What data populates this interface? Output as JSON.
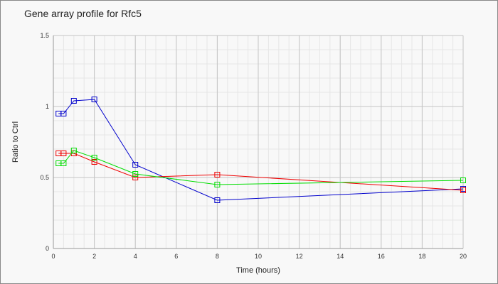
{
  "chart_data": {
    "type": "line",
    "title": "Gene array profile for Rfc5",
    "xlabel": "Time (hours)",
    "ylabel": "Ratio to Ctrl",
    "xlim": [
      0,
      20
    ],
    "ylim": [
      0,
      1.5
    ],
    "xticks": [
      "0",
      "2",
      "4",
      "6",
      "8",
      "10",
      "12",
      "14",
      "16",
      "18",
      "20"
    ],
    "yticks": [
      "0",
      "0.5",
      "1",
      "1.5"
    ],
    "grid": true,
    "x": [
      0.25,
      0.5,
      1,
      2,
      4,
      8,
      20
    ],
    "series": [
      {
        "color": "#0000cc",
        "values": [
          0.95,
          0.95,
          1.04,
          1.05,
          0.59,
          0.34,
          0.42
        ]
      },
      {
        "color": "#ee0000",
        "values": [
          0.67,
          0.67,
          0.67,
          0.61,
          0.5,
          0.52,
          0.41
        ]
      },
      {
        "color": "#00dd00",
        "values": [
          0.6,
          0.6,
          0.69,
          0.64,
          0.525,
          0.45,
          0.48
        ]
      }
    ]
  }
}
